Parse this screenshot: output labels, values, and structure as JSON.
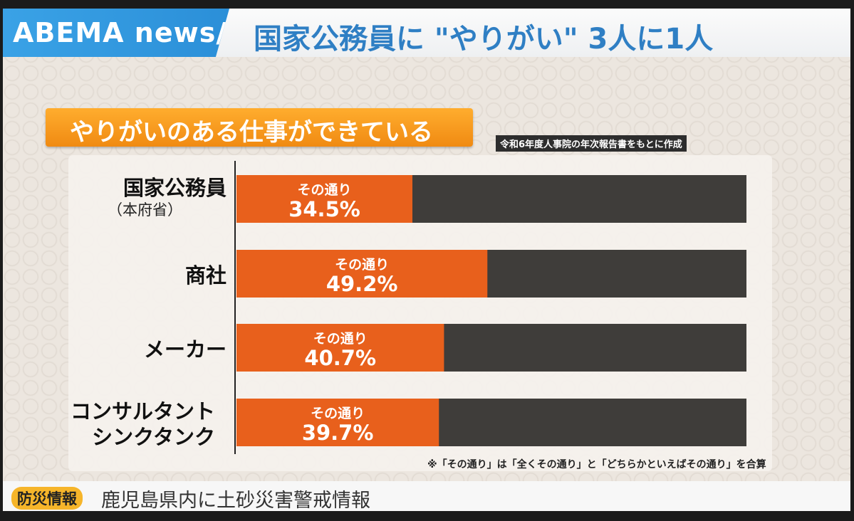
{
  "header": {
    "logo": "ABEMA news/",
    "headline": "国家公務員に \"やりがい\" 3人に1人"
  },
  "subtitle": "やりがいのある仕事ができている",
  "source_note": "令和6年度人事院の年次報告書をもとに作成",
  "footnote": "※「その通り」は「全くその通り」と「どちらかといえばその通り」を合算",
  "ticker": {
    "label": "防災情報",
    "text": "鹿児島県内に土砂災害警戒情報"
  },
  "colors": {
    "accent_orange": "#e8601c",
    "remainder_dark": "#3f3d3a",
    "brand_blue": "#2f8fd8"
  },
  "chart_data": {
    "type": "bar",
    "orientation": "horizontal",
    "stacked": true,
    "unit": "%",
    "xlim": [
      0,
      100
    ],
    "categories": [
      {
        "name": "国家公務員",
        "sub": "（本府省）"
      },
      {
        "name": "商社",
        "sub": ""
      },
      {
        "name": "メーカー",
        "sub": ""
      },
      {
        "name": "コンサルタント シンクタンク",
        "sub": ""
      }
    ],
    "series": [
      {
        "name": "その通り",
        "values": [
          34.5,
          49.2,
          40.7,
          39.7
        ],
        "value_labels": [
          "34.5%",
          "49.2%",
          "40.7%",
          "39.7%"
        ]
      }
    ],
    "grid": false,
    "legend": "none"
  }
}
